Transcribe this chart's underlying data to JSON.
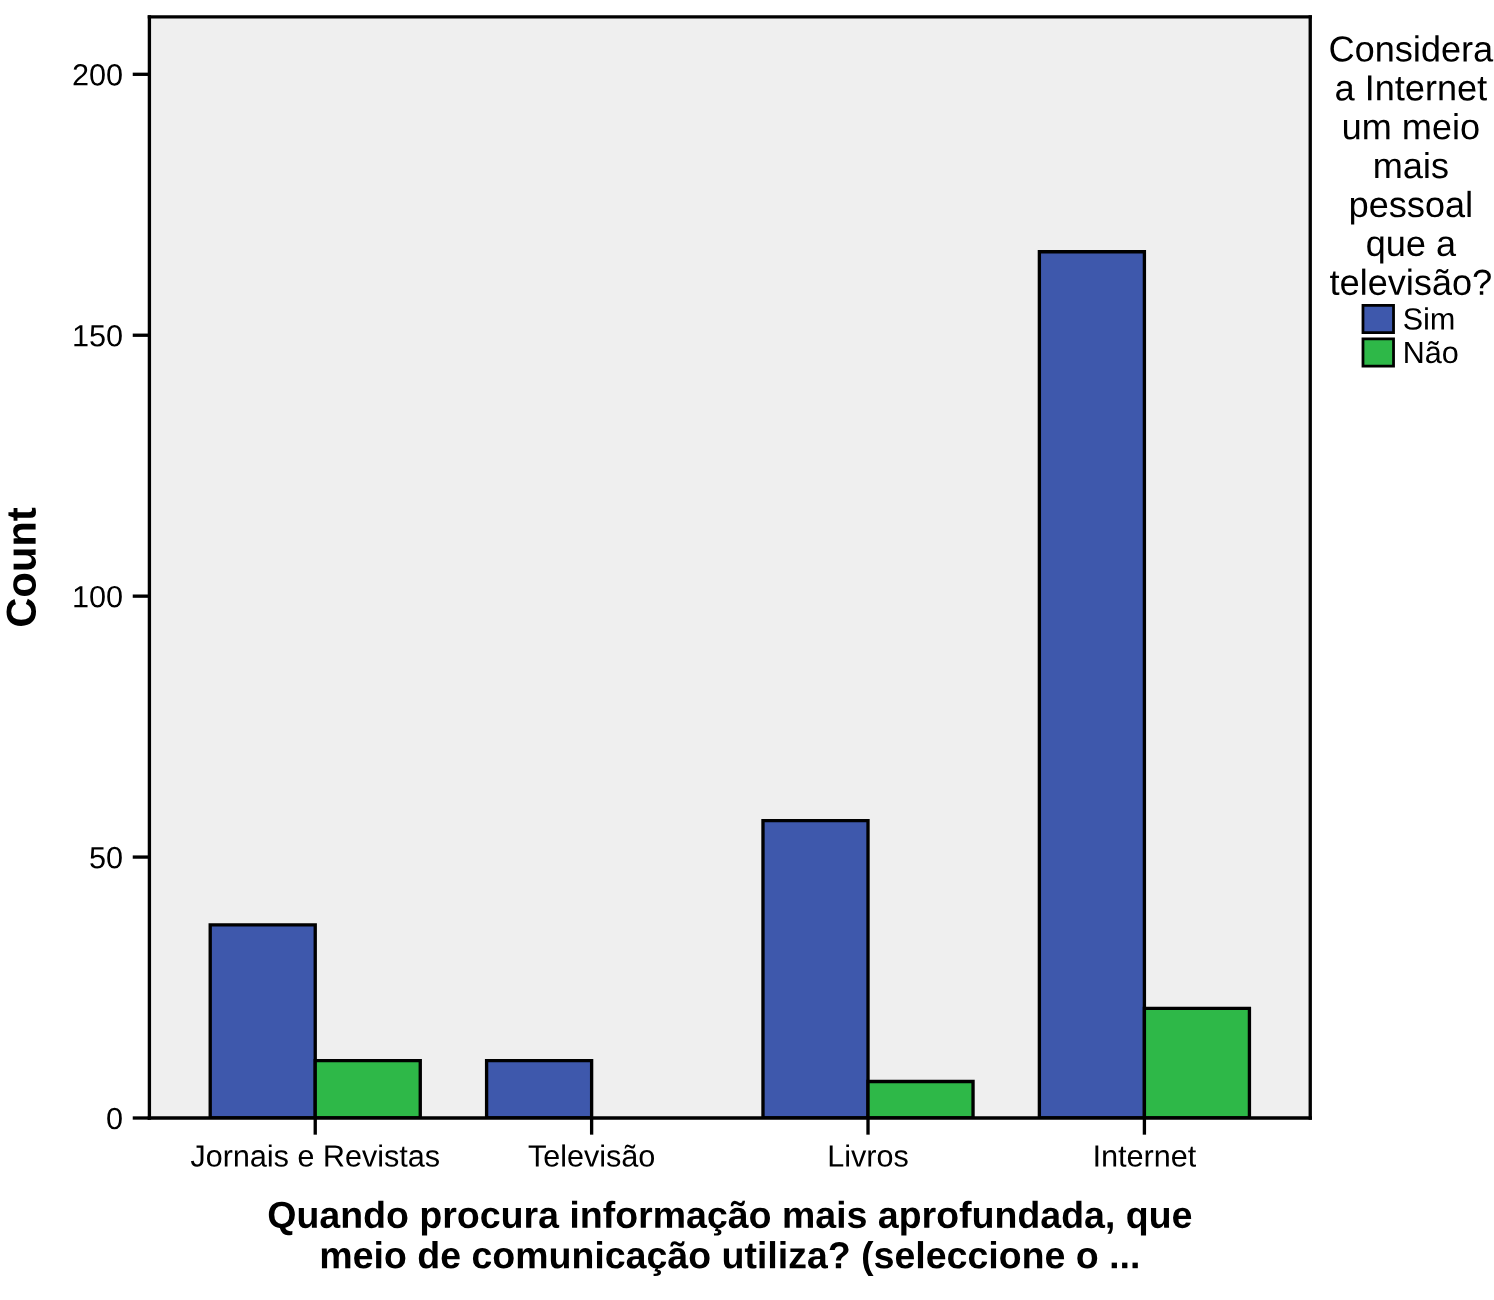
{
  "chart_data": {
    "type": "bar",
    "xlabel": "Quando procura informação mais aprofundada, que\nmeio de comunicação utiliza? (seleccione o ...",
    "ylabel": "Count",
    "legend_title": "Considera\na Internet\num meio\nmais\npessoal\nque a\ntelevisão?",
    "categories": [
      "Jornais e Revistas",
      "Televisão",
      "Livros",
      "Internet"
    ],
    "series": [
      {
        "name": "Sim",
        "color": "#3e58ac",
        "values": [
          37,
          11,
          57,
          166
        ]
      },
      {
        "name": "Não",
        "color": "#2eb848",
        "values": [
          11,
          0,
          7,
          21
        ]
      }
    ],
    "ylim": [
      0,
      211
    ],
    "yticks": [
      0,
      50,
      100,
      150,
      200
    ],
    "grid": false,
    "legend": "right"
  }
}
